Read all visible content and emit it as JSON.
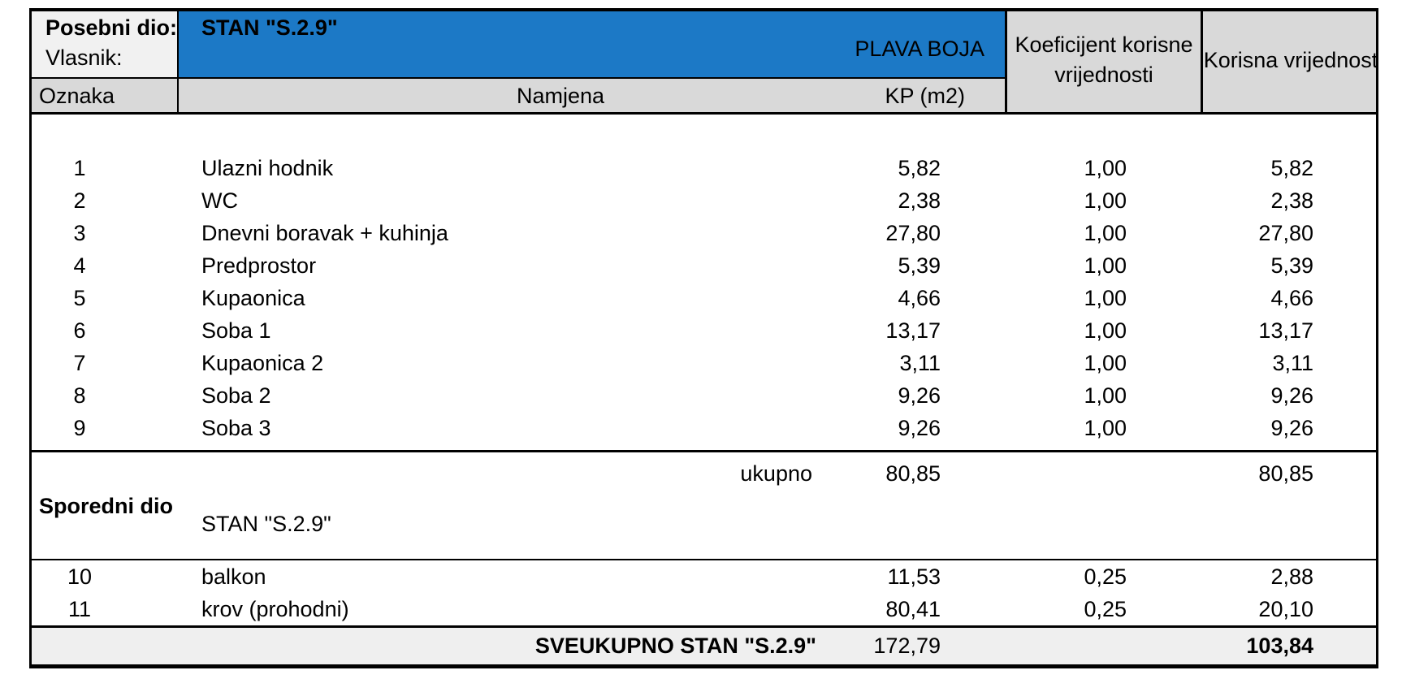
{
  "colors": {
    "blue": "#1c79c6",
    "header_gray": "#d9d9d9",
    "light_gray": "#f1f1f1",
    "total_row_gray": "#efefef",
    "border": "#000000"
  },
  "header": {
    "posebni_dio_label": "Posebni dio:",
    "vlasnik_label": "Vlasnik:",
    "stan_title": "STAN \"S.2.9\"",
    "color_note": "PLAVA BOJA",
    "col_oznaka": "Oznaka",
    "col_namjena": "Namjena",
    "col_kp": "KP (m2)",
    "col_koeficijent": "Koeficijent korisne vrijednosti",
    "col_korisna": "Korisna vrijednost"
  },
  "rows": [
    {
      "oznaka": "1",
      "namjena": "Ulazni hodnik",
      "kp": "5,82",
      "koef": "1,00",
      "korisna": "5,82"
    },
    {
      "oznaka": "2",
      "namjena": "WC",
      "kp": "2,38",
      "koef": "1,00",
      "korisna": "2,38"
    },
    {
      "oznaka": "3",
      "namjena": "Dnevni boravak + kuhinja",
      "kp": "27,80",
      "koef": "1,00",
      "korisna": "27,80"
    },
    {
      "oznaka": "4",
      "namjena": "Predprostor",
      "kp": "5,39",
      "koef": "1,00",
      "korisna": "5,39"
    },
    {
      "oznaka": "5",
      "namjena": "Kupaonica",
      "kp": "4,66",
      "koef": "1,00",
      "korisna": "4,66"
    },
    {
      "oznaka": "6",
      "namjena": "Soba 1",
      "kp": "13,17",
      "koef": "1,00",
      "korisna": "13,17"
    },
    {
      "oznaka": "7",
      "namjena": "Kupaonica 2",
      "kp": "3,11",
      "koef": "1,00",
      "korisna": "3,11"
    },
    {
      "oznaka": "8",
      "namjena": "Soba 2",
      "kp": "9,26",
      "koef": "1,00",
      "korisna": "9,26"
    },
    {
      "oznaka": "9",
      "namjena": "Soba 3",
      "kp": "9,26",
      "koef": "1,00",
      "korisna": "9,26"
    }
  ],
  "ukupno": {
    "label": "ukupno",
    "kp": "80,85",
    "korisna": "80,85"
  },
  "sporedni": {
    "label": "Sporedni dio",
    "stan": "STAN \"S.2.9\""
  },
  "sporedni_rows": [
    {
      "oznaka": "10",
      "namjena": "balkon",
      "kp": "11,53",
      "koef": "0,25",
      "korisna": "2,88"
    },
    {
      "oznaka": "11",
      "namjena": "krov (prohodni)",
      "kp": "80,41",
      "koef": "0,25",
      "korisna": "20,10"
    }
  ],
  "total": {
    "label": "SVEUKUPNO STAN \"S.2.9\"",
    "kp": "172,79",
    "korisna": "103,84"
  }
}
